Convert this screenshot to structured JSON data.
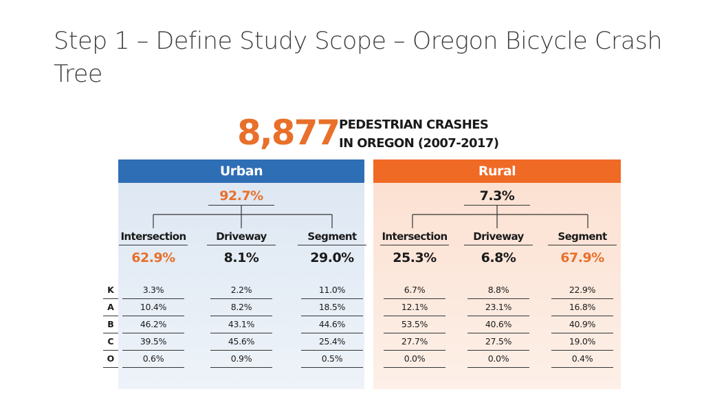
{
  "slide": {
    "title": "Step 1 – Define Study Scope – Oregon Bicycle Crash Tree"
  },
  "headline": {
    "number": "8,877",
    "text_line1": "PEDESTRIAN CRASHES",
    "text_line2": "IN OREGON (2007-2017)"
  },
  "colors": {
    "urban_header": "#2e6eb5",
    "rural_header": "#ef6a25",
    "highlight": "#e8702a"
  },
  "severity_labels": [
    "K",
    "A",
    "B",
    "C",
    "O"
  ],
  "urban": {
    "label": "Urban",
    "share": "92.7%",
    "categories": [
      {
        "name": "Intersection",
        "share": "62.9%",
        "highlight": true,
        "severity": [
          "3.3%",
          "10.4%",
          "46.2%",
          "39.5%",
          "0.6%"
        ]
      },
      {
        "name": "Driveway",
        "share": "8.1%",
        "highlight": false,
        "severity": [
          "2.2%",
          "8.2%",
          "43.1%",
          "45.6%",
          "0.9%"
        ]
      },
      {
        "name": "Segment",
        "share": "29.0%",
        "highlight": false,
        "severity": [
          "11.0%",
          "18.5%",
          "44.6%",
          "25.4%",
          "0.5%"
        ]
      }
    ]
  },
  "rural": {
    "label": "Rural",
    "share": "7.3%",
    "categories": [
      {
        "name": "Intersection",
        "share": "25.3%",
        "highlight": false,
        "severity": [
          "6.7%",
          "12.1%",
          "53.5%",
          "27.7%",
          "0.0%"
        ]
      },
      {
        "name": "Driveway",
        "share": "6.8%",
        "highlight": false,
        "severity": [
          "8.8%",
          "23.1%",
          "40.6%",
          "27.5%",
          "0.0%"
        ]
      },
      {
        "name": "Segment",
        "share": "67.9%",
        "highlight": true,
        "severity": [
          "22.9%",
          "16.8%",
          "40.9%",
          "19.0%",
          "0.4%"
        ]
      }
    ]
  }
}
